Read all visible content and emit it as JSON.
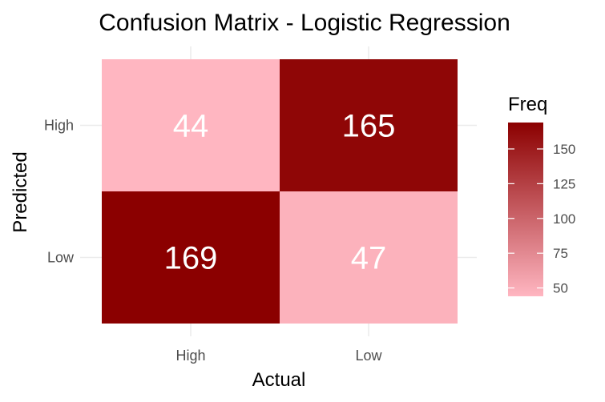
{
  "chart_data": {
    "type": "heatmap",
    "title": "Confusion Matrix - Logistic Regression",
    "xlabel": "Actual",
    "ylabel": "Predicted",
    "x_categories": [
      "High",
      "Low"
    ],
    "y_categories": [
      "High",
      "Low"
    ],
    "cells": [
      {
        "actual": "High",
        "predicted": "High",
        "value": 44
      },
      {
        "actual": "Low",
        "predicted": "High",
        "value": 165
      },
      {
        "actual": "High",
        "predicted": "Low",
        "value": 169
      },
      {
        "actual": "Low",
        "predicted": "Low",
        "value": 47
      }
    ],
    "legend": {
      "title": "Freq",
      "ticks": [
        50,
        75,
        100,
        125,
        150
      ],
      "range": [
        44,
        169
      ],
      "placement": "right"
    },
    "colors": {
      "low": "#ffb6c1",
      "high": "#8b0000",
      "cell_text": "#ffffff",
      "grid": "#ebebeb"
    },
    "grid": true
  }
}
